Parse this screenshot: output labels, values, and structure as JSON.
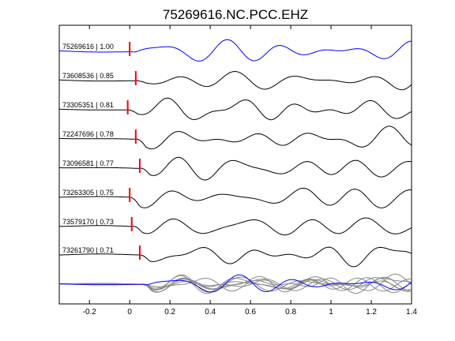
{
  "chart_data": {
    "type": "line",
    "title": "75269616.NC.PCC.EHZ",
    "xlabel": "",
    "ylabel": "",
    "xlim": [
      -0.35,
      1.4
    ],
    "xticks": [
      -0.2,
      0,
      0.2,
      0.4,
      0.6,
      0.8,
      1,
      1.2,
      1.4
    ],
    "xtick_labels": [
      "-0.2",
      "0",
      "0.2",
      "0.4",
      "0.6",
      "0.8",
      "1",
      "1.2",
      "1.4"
    ],
    "grid": false,
    "legend": "none",
    "series": [
      {
        "label": "75269616 | 1.00",
        "pick": 0.0,
        "color": "#0000ff",
        "seed": 1
      },
      {
        "label": "73608536 | 0.85",
        "pick": 0.03,
        "color": "#000000",
        "seed": 2
      },
      {
        "label": "73305351 | 0.81",
        "pick": -0.01,
        "color": "#000000",
        "seed": 3
      },
      {
        "label": "72247696 | 0.78",
        "pick": 0.03,
        "color": "#000000",
        "seed": 4
      },
      {
        "label": "73096581 | 0.77",
        "pick": 0.05,
        "color": "#000000",
        "seed": 5
      },
      {
        "label": "73263305 | 0.75",
        "pick": 0.0,
        "color": "#000000",
        "seed": 6
      },
      {
        "label": "73579170 | 0.73",
        "pick": 0.01,
        "color": "#000000",
        "seed": 7
      },
      {
        "label": "73261790 | 0.71",
        "pick": 0.05,
        "color": "#000000",
        "seed": 8
      }
    ],
    "stack": {
      "colors": {
        "reference": "#0000ff",
        "others": "#888888"
      }
    },
    "pick_color": "#ff0000"
  }
}
